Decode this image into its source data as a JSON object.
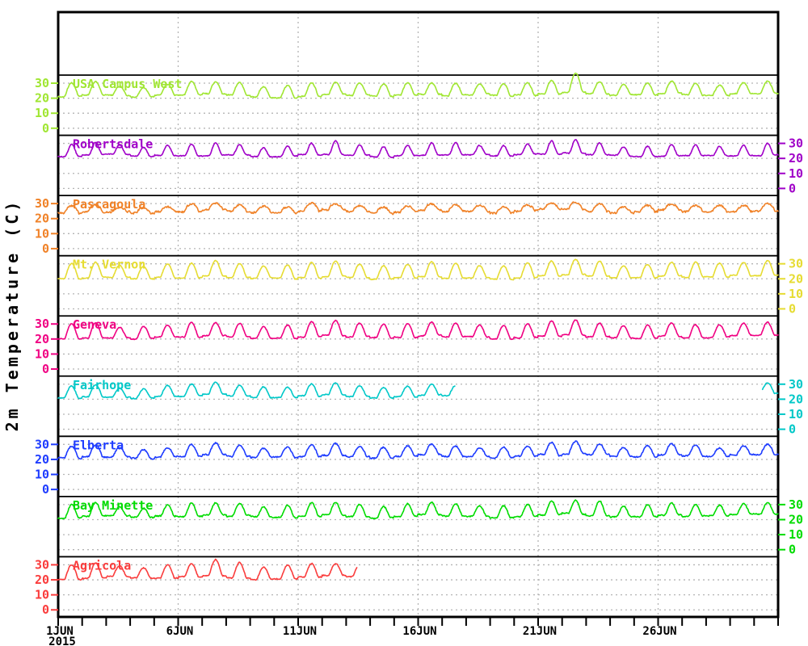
{
  "page": {
    "background": "#ffffff"
  },
  "chart_data": {
    "type": "line",
    "title": "",
    "ylabel": "2m Temperature (C)",
    "layout_hint": "stacked meteogram, 9 station panels sharing one time axis, dotted grid on, per-panel y ticks alternating left/right, labels colored like traces",
    "colors": {
      "frame": "#000000",
      "grid": "#b4b4b4",
      "axis_text": "#000000"
    },
    "x_axis": {
      "range_days": [
        0,
        30
      ],
      "minor_tick_interval_days": 1,
      "tick_days": [
        0,
        5,
        10,
        15,
        20,
        25
      ],
      "tick_labels": [
        "1JUN",
        "6JUN",
        "11JUN",
        "16JUN",
        "21JUN",
        "26JUN"
      ],
      "year_label": "2015",
      "gridline_days": [
        5,
        10,
        15,
        20,
        25
      ]
    },
    "panel_y": {
      "ticks": [
        0,
        10,
        20,
        30
      ],
      "tick_labels": [
        "0",
        "10",
        "20",
        "30"
      ],
      "units": "C"
    },
    "series": [
      {
        "name": "USA Campus West",
        "color": "#a0e632",
        "label_side": "left",
        "sharpness": 1.2,
        "noise": 0.6,
        "segments": [
          [
            0,
            30
          ]
        ],
        "daily_min": [
          21,
          22,
          22,
          21,
          22,
          22,
          23,
          22,
          21,
          21,
          22,
          23,
          22,
          21,
          22,
          23,
          22,
          22,
          21,
          22,
          23,
          24,
          23,
          22,
          22,
          23,
          22,
          22,
          23,
          23
        ],
        "daily_max": [
          30,
          31,
          28,
          27,
          29,
          31,
          31,
          30,
          28,
          29,
          31,
          31,
          30,
          29,
          30,
          31,
          30,
          29,
          29,
          30,
          32,
          36.5,
          31,
          29,
          30,
          31,
          30,
          29,
          30,
          31
        ]
      },
      {
        "name": "Robertsdale",
        "color": "#a000c8",
        "label_side": "right",
        "sharpness": 1.9,
        "noise": 0.55,
        "segments": [
          [
            0,
            30
          ]
        ],
        "daily_min": [
          21,
          22,
          22,
          21,
          22,
          22,
          22,
          22,
          21,
          21,
          22,
          22,
          22,
          21,
          22,
          22,
          22,
          22,
          21,
          22,
          22,
          23,
          22,
          22,
          22,
          22,
          22,
          22,
          22,
          22
        ],
        "daily_max": [
          29,
          30,
          28,
          27,
          29,
          30,
          31,
          29,
          27,
          28,
          30,
          31,
          29,
          28,
          29,
          30,
          30,
          28,
          28,
          29,
          31,
          32,
          30,
          28,
          29,
          30,
          29,
          28,
          29,
          30
        ]
      },
      {
        "name": "Pascagoula",
        "color": "#f08228",
        "label_side": "left",
        "sharpness": 0.65,
        "noise": 1.1,
        "segments": [
          [
            0,
            30
          ]
        ],
        "daily_min": [
          24,
          25,
          25,
          24,
          25,
          25,
          26,
          25,
          24,
          24,
          25,
          26,
          25,
          24,
          25,
          26,
          25,
          25,
          24,
          25,
          26,
          26,
          25,
          24,
          25,
          26,
          25,
          25,
          25,
          25
        ],
        "daily_max": [
          29,
          30,
          28,
          27,
          28,
          30,
          30,
          29,
          28,
          28,
          30,
          30,
          29,
          28,
          29,
          30,
          29,
          29,
          28,
          29,
          30,
          31,
          30,
          28,
          29,
          30,
          29,
          29,
          29,
          30
        ]
      },
      {
        "name": "Mt. Vernon",
        "color": "#e6dc32",
        "label_side": "right",
        "sharpness": 1.2,
        "noise": 0.45,
        "segments": [
          [
            0,
            30
          ]
        ],
        "daily_min": [
          20,
          21,
          21,
          20,
          21,
          21,
          22,
          21,
          20,
          20,
          21,
          22,
          21,
          20,
          21,
          22,
          21,
          21,
          20,
          21,
          22,
          23,
          22,
          21,
          21,
          22,
          21,
          21,
          22,
          22
        ],
        "daily_max": [
          30,
          31,
          29,
          28,
          30,
          31,
          32,
          30,
          28,
          29,
          31,
          32,
          30,
          29,
          30,
          32,
          31,
          29,
          29,
          31,
          32,
          33,
          32,
          29,
          30,
          31,
          31,
          30,
          31,
          32
        ]
      },
      {
        "name": "Geneva",
        "color": "#f00082",
        "label_side": "left",
        "sharpness": 1.3,
        "noise": 0.5,
        "segments": [
          [
            0,
            30
          ]
        ],
        "daily_min": [
          20,
          21,
          21,
          20,
          21,
          21,
          22,
          21,
          20,
          20,
          21,
          22,
          21,
          20,
          21,
          22,
          21,
          21,
          20,
          21,
          22,
          23,
          22,
          21,
          21,
          22,
          21,
          21,
          22,
          22
        ],
        "daily_max": [
          30,
          31,
          28,
          28,
          29,
          31,
          31,
          30,
          28,
          29,
          31,
          32,
          30,
          29,
          30,
          31,
          30,
          29,
          29,
          30,
          32,
          33,
          31,
          29,
          30,
          31,
          30,
          29,
          30,
          31
        ]
      },
      {
        "name": "Fairhope",
        "color": "#00c8c8",
        "label_side": "right",
        "sharpness": 1.2,
        "noise": 0.55,
        "segments": [
          [
            0,
            16.53
          ],
          [
            29.35,
            30
          ]
        ],
        "daily_min": [
          21,
          22,
          22,
          21,
          22,
          22,
          23,
          22,
          21,
          21,
          22,
          23,
          22,
          21,
          22,
          23,
          22,
          22,
          21,
          22,
          23,
          24,
          23,
          22,
          22,
          23,
          22,
          22,
          23,
          24
        ],
        "daily_max": [
          29,
          30,
          28,
          27,
          29,
          30,
          31,
          29,
          28,
          28,
          30,
          31,
          29,
          28,
          29,
          30,
          29,
          28,
          28,
          29,
          31,
          32,
          30,
          28,
          29,
          30,
          29,
          28,
          29,
          31
        ]
      },
      {
        "name": "Elberta",
        "color": "#1e3cff",
        "label_side": "left",
        "sharpness": 1.1,
        "noise": 0.8,
        "segments": [
          [
            0,
            30
          ]
        ],
        "daily_min": [
          21,
          22,
          22,
          21,
          22,
          22,
          23,
          22,
          21,
          21,
          22,
          23,
          22,
          21,
          22,
          23,
          22,
          22,
          21,
          22,
          23,
          24,
          23,
          22,
          22,
          23,
          22,
          22,
          23,
          23
        ],
        "daily_max": [
          29,
          30,
          28,
          27,
          28,
          30,
          31,
          29,
          27,
          28,
          30,
          31,
          29,
          28,
          29,
          30,
          29,
          28,
          28,
          29,
          31,
          32,
          30,
          28,
          29,
          30,
          29,
          28,
          29,
          30
        ]
      },
      {
        "name": "Bay Minette",
        "color": "#00dc00",
        "label_side": "right",
        "sharpness": 1.5,
        "noise": 0.7,
        "segments": [
          [
            0,
            30
          ]
        ],
        "daily_min": [
          21,
          22,
          22,
          21,
          22,
          22,
          23,
          22,
          21,
          21,
          22,
          23,
          22,
          21,
          22,
          23,
          22,
          22,
          21,
          22,
          23,
          24,
          23,
          22,
          22,
          23,
          22,
          22,
          23,
          23
        ],
        "daily_max": [
          30,
          31,
          28,
          27,
          29,
          31,
          31,
          30,
          28,
          29,
          31,
          31,
          30,
          29,
          30,
          31,
          30,
          29,
          29,
          30,
          32,
          33,
          33,
          29,
          30,
          31,
          30,
          29,
          30,
          31
        ]
      },
      {
        "name": "Agricola",
        "color": "#fa3c3c",
        "label_side": "left",
        "sharpness": 1.3,
        "noise": 0.6,
        "segments": [
          [
            0,
            12.45
          ]
        ],
        "daily_min": [
          20,
          21,
          22,
          21,
          21,
          22,
          23,
          22,
          21,
          21,
          22,
          23,
          22,
          21,
          22,
          23,
          22,
          22,
          21,
          22,
          23,
          24,
          23,
          22,
          22,
          23,
          22,
          22,
          23,
          23
        ],
        "daily_max": [
          30,
          31,
          29,
          28,
          30,
          31,
          34,
          32,
          29,
          30,
          31,
          31,
          30,
          29,
          30,
          31,
          30,
          29,
          29,
          30,
          32,
          33,
          31,
          29,
          30,
          31,
          30,
          29,
          30,
          31
        ]
      }
    ]
  }
}
